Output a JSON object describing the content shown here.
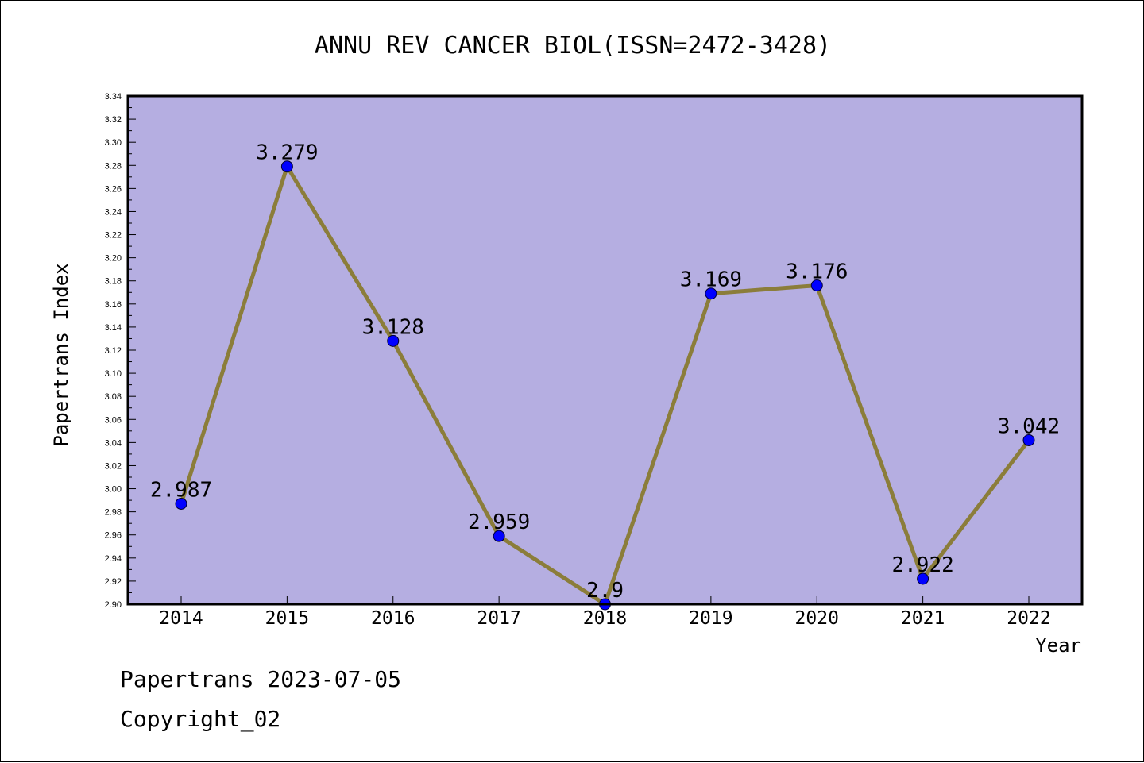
{
  "chart_data": {
    "type": "line",
    "title": "ANNU REV CANCER BIOL(ISSN=2472-3428)",
    "xlabel": "Year",
    "ylabel": "Papertrans Index",
    "categories": [
      "2014",
      "2015",
      "2016",
      "2017",
      "2018",
      "2019",
      "2020",
      "2021",
      "2022"
    ],
    "values": [
      2.987,
      3.279,
      3.128,
      2.959,
      2.9,
      3.169,
      3.176,
      2.922,
      3.042
    ],
    "value_labels": [
      "2.987",
      "3.279",
      "3.128",
      "2.959",
      "2.9",
      "3.169",
      "3.176",
      "2.922",
      "3.042"
    ],
    "ylim": [
      2.9,
      3.34
    ],
    "yticks": [
      "2.90",
      "2.92",
      "2.94",
      "2.96",
      "2.98",
      "3.00",
      "3.02",
      "3.04",
      "3.06",
      "3.08",
      "3.10",
      "3.12",
      "3.14",
      "3.16",
      "3.18",
      "3.20",
      "3.22",
      "3.24",
      "3.26",
      "3.28",
      "3.30",
      "3.32",
      "3.34"
    ],
    "grid": false,
    "colors": {
      "plot_background": "#b5aee1",
      "line": "#8b7d3a",
      "marker": "#0000ff"
    }
  },
  "footer": {
    "line1": "Papertrans 2023-07-05",
    "line2": "Copyright_02"
  }
}
